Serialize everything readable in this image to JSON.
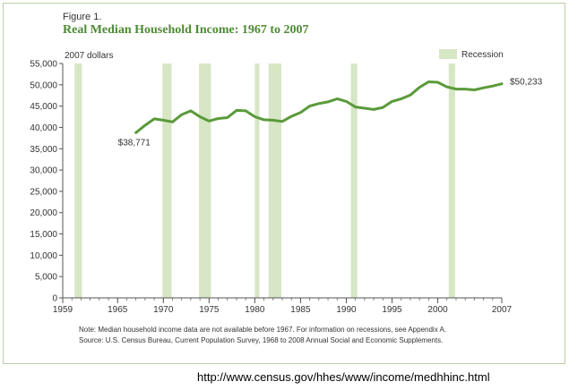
{
  "figure_label": "Figure 1.",
  "note": "Note:  Median household income data are not available before 1967. For information on recessions, see Appendix A.",
  "source": "Source:  U.S. Census Bureau, Current Population Survey, 1968 to 2008 Annual Social and Economic Supplements.",
  "url": "http://www.census.gov/hhes/www/income/medhhinc.html",
  "colors": {
    "line": "#5a9a3a",
    "recession": "#d7e6c5",
    "title": "#4d8a34",
    "axis": "#555555"
  },
  "chart_data": {
    "type": "line",
    "title": "Real Median Household Income:  1967 to 2007",
    "ylabel": "2007 dollars",
    "xlabel": "",
    "xlim": [
      1959,
      2007
    ],
    "ylim": [
      0,
      55000
    ],
    "x_ticks": [
      1959,
      1965,
      1970,
      1975,
      1980,
      1985,
      1990,
      1995,
      2000,
      2007
    ],
    "y_ticks": [
      0,
      5000,
      10000,
      15000,
      20000,
      25000,
      30000,
      35000,
      40000,
      45000,
      50000,
      55000
    ],
    "y_tick_labels": [
      "0",
      "5,000",
      "10,000",
      "15,000",
      "20,000",
      "25,000",
      "30,000",
      "35,000",
      "40,000",
      "45,000",
      "50,000",
      "55,000"
    ],
    "legend": {
      "label": "Recession",
      "placement": "top-right"
    },
    "recessions": [
      [
        1960.3,
        1961.1
      ],
      [
        1969.9,
        1970.9
      ],
      [
        1973.9,
        1975.2
      ],
      [
        1980.0,
        1980.5
      ],
      [
        1981.5,
        1982.9
      ],
      [
        1990.5,
        1991.2
      ],
      [
        2001.2,
        2001.9
      ]
    ],
    "series": [
      {
        "x": [
          1967,
          1968,
          1969,
          1970,
          1971,
          1972,
          1973,
          1974,
          1975,
          1976,
          1977,
          1978,
          1979,
          1980,
          1981,
          1982,
          1983,
          1984,
          1985,
          1986,
          1987,
          1988,
          1989,
          1990,
          1991,
          1992,
          1993,
          1994,
          1995,
          1996,
          1997,
          1998,
          1999,
          2000,
          2001,
          2002,
          2003,
          2004,
          2005,
          2006,
          2007
        ],
        "values": [
          38771,
          40500,
          42000,
          41700,
          41300,
          43000,
          43900,
          42500,
          41500,
          42100,
          42300,
          44000,
          43900,
          42500,
          41800,
          41700,
          41400,
          42600,
          43500,
          45000,
          45600,
          46000,
          46700,
          46100,
          44800,
          44500,
          44200,
          44700,
          46100,
          46700,
          47600,
          49400,
          50700,
          50600,
          49500,
          49000,
          49000,
          48800,
          49300,
          49700,
          50233
        ]
      }
    ],
    "annotations": [
      {
        "label": "$38,771",
        "x": 1967,
        "y": 38771
      },
      {
        "label": "$50,233",
        "x": 2007,
        "y": 50233
      }
    ]
  }
}
